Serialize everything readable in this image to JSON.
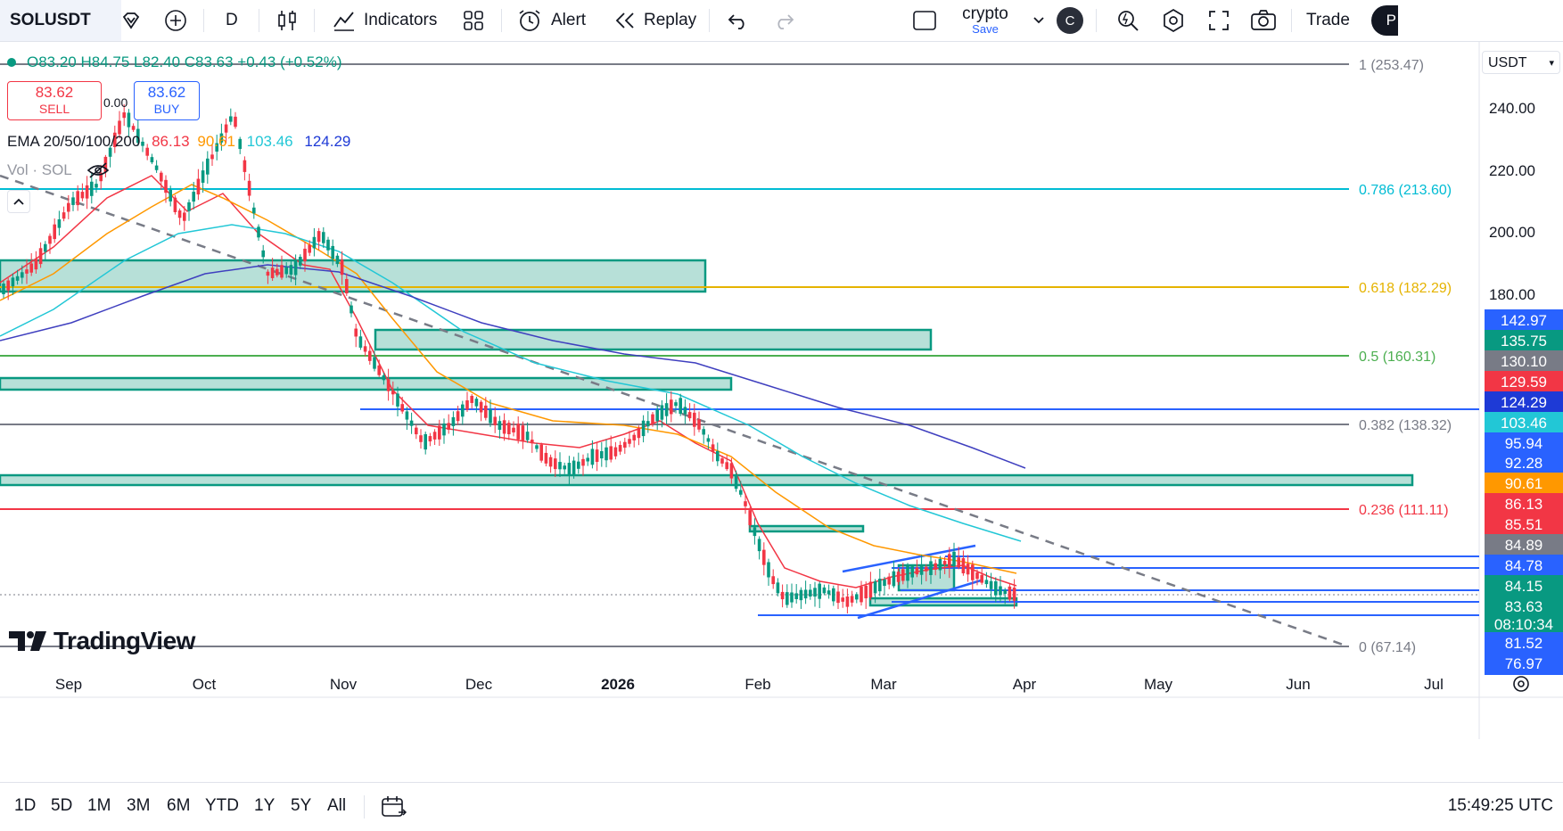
{
  "toolbar": {
    "symbol": "SOLUSDT",
    "interval": "D",
    "indicators_label": "Indicators",
    "alert_label": "Alert",
    "replay_label": "Replay",
    "layout_name": "crypto",
    "layout_save": "Save",
    "avatar_letter": "C",
    "trade_label": "Trade",
    "publish_partial": "P"
  },
  "legend": {
    "ohlc": "O83.20 H84.75 L82.40 C83.63 +0.43 (+0.52%)",
    "sell_price": "83.62",
    "sell_label": "SELL",
    "spread": "0.00",
    "buy_price": "83.62",
    "buy_label": "BUY",
    "ema_title": "EMA 20/50/100/200",
    "ema20": "86.13",
    "ema50": "90.61",
    "ema100": "103.46",
    "ema200": "124.29",
    "vol_label": "Vol · SOL"
  },
  "currency": "USDT",
  "price_axis": [
    "240.00",
    "220.00",
    "200.00",
    "180.00"
  ],
  "fib_levels": [
    {
      "label": "1 (253.47)",
      "color": "#787b86"
    },
    {
      "label": "0.786 (213.60)",
      "color": "#00bcd4"
    },
    {
      "label": "0.618 (182.29)",
      "color": "#e5b300"
    },
    {
      "label": "0.5 (160.31)",
      "color": "#4caf50"
    },
    {
      "label": "0.382 (138.32)",
      "color": "#787b86"
    },
    {
      "label": "0.236 (111.11)",
      "color": "#f23645"
    },
    {
      "label": "0 (67.14)",
      "color": "#787b86"
    }
  ],
  "price_pills": [
    {
      "value": "142.97",
      "color": "#2962ff"
    },
    {
      "value": "135.75",
      "color": "#089981"
    },
    {
      "value": "130.10",
      "color": "#787b86"
    },
    {
      "value": "129.59",
      "color": "#f23645"
    },
    {
      "value": "124.29",
      "color": "#1e3ad6"
    },
    {
      "value": "103.46",
      "color": "#22c7d6"
    },
    {
      "value": "95.94",
      "color": "#2962ff"
    },
    {
      "value": "92.28",
      "color": "#2962ff"
    },
    {
      "value": "90.61",
      "color": "#ff9800"
    },
    {
      "value": "86.13",
      "color": "#f23645"
    },
    {
      "value": "85.51",
      "color": "#f23645"
    },
    {
      "value": "84.89",
      "color": "#787b86"
    },
    {
      "value": "84.78",
      "color": "#2962ff"
    },
    {
      "value": "84.15",
      "color": "#089981"
    },
    {
      "value": "83.63",
      "color": "#089981"
    },
    {
      "value": "08:10:34",
      "color": "#089981"
    },
    {
      "value": "81.52",
      "color": "#2962ff"
    },
    {
      "value": "76.97",
      "color": "#2962ff"
    }
  ],
  "time_axis": [
    "Sep",
    "Oct",
    "Nov",
    "Dec",
    "2026",
    "Feb",
    "Mar",
    "Apr",
    "May",
    "Jun",
    "Jul"
  ],
  "ranges": [
    "1D",
    "5D",
    "1M",
    "3M",
    "6M",
    "YTD",
    "1Y",
    "5Y",
    "All"
  ],
  "clock": "15:49:25 UTC",
  "watermark": "TradingView",
  "colors": {
    "up": "#089981",
    "down": "#f23645",
    "ema20": "#f23645",
    "ema50": "#ff9800",
    "ema100": "#22c7d6",
    "ema200": "#3f3fbf",
    "zone": "#089981"
  }
}
